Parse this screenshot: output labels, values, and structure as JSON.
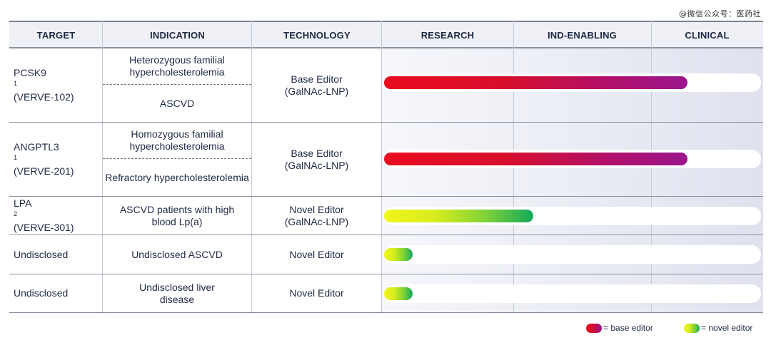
{
  "watermark": "@微信公众号：医药社",
  "headers": {
    "target": "TARGET",
    "indication": "INDICATION",
    "technology": "TECHNOLOGY",
    "research": "RESEARCH",
    "ind_enabling": "IND-ENABLING",
    "clinical": "CLINICAL"
  },
  "programs": [
    {
      "target": "PCSK9",
      "target_sup": "1",
      "code": "(VERVE-102)",
      "indications": [
        "Heterozygous familial hypercholesterolemia",
        "ASCVD"
      ],
      "technology": "Base Editor",
      "delivery": "(GalNAc-LNP)",
      "editor_type": "base",
      "progress": 0.805
    },
    {
      "target": "ANGPTL3",
      "target_sup": "1",
      "code": "(VERVE-201)",
      "indications": [
        "Homozygous familial hypercholesterolemia",
        "Refractory hypercholesterolemia"
      ],
      "technology": "Base Editor",
      "delivery": "(GalNAc-LNP)",
      "editor_type": "base",
      "progress": 0.805
    },
    {
      "target": "LPA",
      "target_sup": "2",
      "code": "(VERVE-301)",
      "indications": [
        "ASCVD patients with high blood Lp(a)"
      ],
      "technology": "Novel Editor",
      "delivery": "(GalNAc-LNP)",
      "editor_type": "novel",
      "progress": 0.395
    },
    {
      "target": "Undisclosed",
      "target_sup": "",
      "code": "",
      "indications": [
        "Undisclosed ASCVD"
      ],
      "technology": "Novel Editor",
      "delivery": "",
      "editor_type": "novel",
      "progress": 0.075
    },
    {
      "target": "Undisclosed",
      "target_sup": "",
      "code": "",
      "indications": [
        "Undisclosed liver disease"
      ],
      "technology": "Novel Editor",
      "delivery": "",
      "editor_type": "novel",
      "progress": 0.075
    }
  ],
  "legend": {
    "base": "= base editor",
    "novel": "= novel editor"
  },
  "colors": {
    "base_start": "#ea0c20",
    "base_end": "#9a168c",
    "novel_start": "#f2f51a",
    "novel_end": "#12a85a"
  },
  "chart_data": {
    "type": "bar",
    "orientation": "horizontal",
    "stages": [
      "RESEARCH",
      "IND-ENABLING",
      "CLINICAL"
    ],
    "categories": [
      "PCSK9 (VERVE-102)",
      "ANGPTL3 (VERVE-201)",
      "LPA (VERVE-301)",
      "Undisclosed",
      "Undisclosed"
    ],
    "values": [
      0.805,
      0.805,
      0.395,
      0.075,
      0.075
    ],
    "xlim": [
      0,
      1
    ],
    "title": "",
    "xlabel": "",
    "ylabel": "",
    "legend": [
      "= base editor",
      "= novel editor"
    ]
  }
}
